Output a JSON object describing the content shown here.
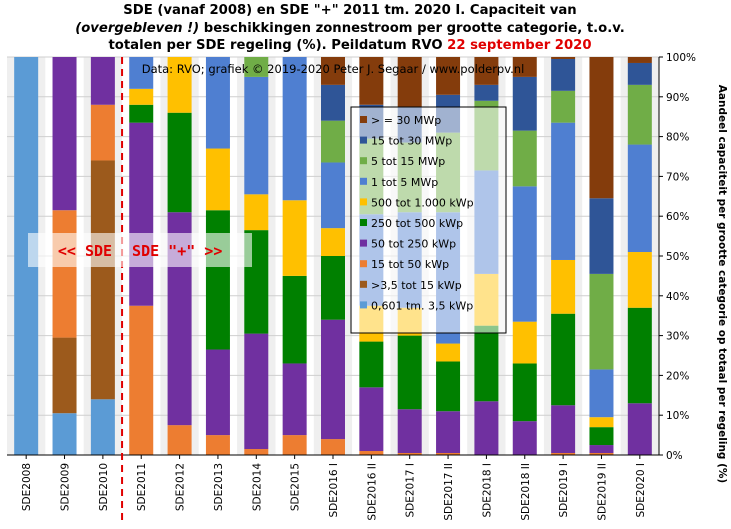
{
  "title": {
    "line1": "SDE (vanaf 2008) en SDE \"+\" 2011 tm. 2020 I. Capaciteit van",
    "line2_italic": "(overgebleven !)",
    "line2_rest": " beschikkingen zonnestroom per grootte categorie, t.o.v.",
    "line3": "totalen per SDE regeling (%). Peildatum RVO ",
    "date": "22 september 2020",
    "date_color": "#e00000"
  },
  "chart_data": {
    "type": "bar",
    "stacked": true,
    "subtitle": "Data: RVO; grafiek © 2019-2020 Peter J. Segaar / www.polderpv.nl",
    "ylabel": "Aandeel capaciteit per grootte categorie op totaal per regeling (%)",
    "ylim": [
      0,
      100
    ],
    "yticks": [
      "0%",
      "10%",
      "20%",
      "30%",
      "40%",
      "50%",
      "60%",
      "70%",
      "80%",
      "90%",
      "100%"
    ],
    "grid": true,
    "legend_position": "center",
    "categories": [
      "SDE2008",
      "SDE2009",
      "SDE2010",
      "SDE2011",
      "SDE2012",
      "SDE2013",
      "SDE2014",
      "SDE2015",
      "SDE2016 I",
      "SDE2016 II",
      "SDE2017 I",
      "SDE2017 II",
      "SDE2018 I",
      "SDE2018 II",
      "SDE2019 I",
      "SDE2019 II",
      "SDE2020 I"
    ],
    "series": [
      {
        "name": "0,601 tm. 3,5 kWp",
        "color": "#5b9bd5",
        "values": [
          100,
          10.5,
          14,
          0,
          0,
          0,
          0,
          0,
          0,
          0,
          0,
          0,
          0,
          0,
          0,
          0,
          0
        ]
      },
      {
        "name": ">3,5 tot 15 kWp",
        "color": "#9c5a1c",
        "values": [
          0,
          19,
          60,
          0,
          0,
          0,
          0,
          0,
          0,
          0,
          0,
          0,
          0,
          0,
          0,
          0,
          0
        ]
      },
      {
        "name": "15 tot 50 kWp",
        "color": "#ed7d31",
        "values": [
          0,
          32,
          14,
          37.5,
          7.5,
          5,
          1.5,
          5,
          4,
          1,
          0.5,
          0.5,
          0,
          0,
          0.5,
          0.5,
          0
        ]
      },
      {
        "name": "50 tot 250 kWp",
        "color": "#7030a0",
        "values": [
          0,
          38.5,
          12,
          46,
          53.5,
          21.5,
          29,
          18,
          30,
          16,
          11,
          10.5,
          13.5,
          8.5,
          12,
          2,
          13
        ]
      },
      {
        "name": "250 tot 500 kWp",
        "color": "#008000",
        "values": [
          0,
          0,
          0,
          4.5,
          25,
          35,
          26,
          22,
          16,
          11.5,
          18.5,
          12.5,
          19,
          14.5,
          23,
          4.5,
          24
        ]
      },
      {
        "name": "500 tot 1.000 kWp",
        "color": "#ffc000",
        "values": [
          0,
          0,
          0,
          4,
          14,
          15.5,
          9,
          19,
          7,
          9,
          7,
          4.5,
          13,
          10.5,
          13.5,
          2.5,
          14
        ]
      },
      {
        "name": "1 tot 5 MWp",
        "color": "#4f7fd1",
        "values": [
          0,
          0,
          0,
          8,
          0,
          23,
          29.5,
          36,
          16.5,
          23,
          24,
          33,
          26,
          34,
          34.5,
          12,
          27
        ]
      },
      {
        "name": "5 tot 15 MWp",
        "color": "#70ad47",
        "values": [
          0,
          0,
          0,
          0,
          0,
          0,
          5,
          0,
          10.5,
          19,
          17.5,
          20,
          17.5,
          14,
          8,
          24,
          15
        ]
      },
      {
        "name": "15 tot 30 MWp",
        "color": "#2f5597",
        "values": [
          0,
          0,
          0,
          0,
          0,
          0,
          0,
          0,
          9,
          8.5,
          9,
          9.5,
          4,
          13.5,
          8,
          19,
          5.5
        ]
      },
      {
        "name": "> = 30 MWp",
        "color": "#843c0c",
        "values": [
          0,
          0,
          0,
          0,
          0,
          0,
          0,
          0,
          7,
          12,
          12.5,
          9.5,
          7,
          5,
          0.5,
          35.5,
          1.5
        ]
      }
    ],
    "annotation": {
      "left_label": "<< SDE",
      "right_label": "SDE \"+\" >>",
      "color": "#e00000"
    }
  }
}
